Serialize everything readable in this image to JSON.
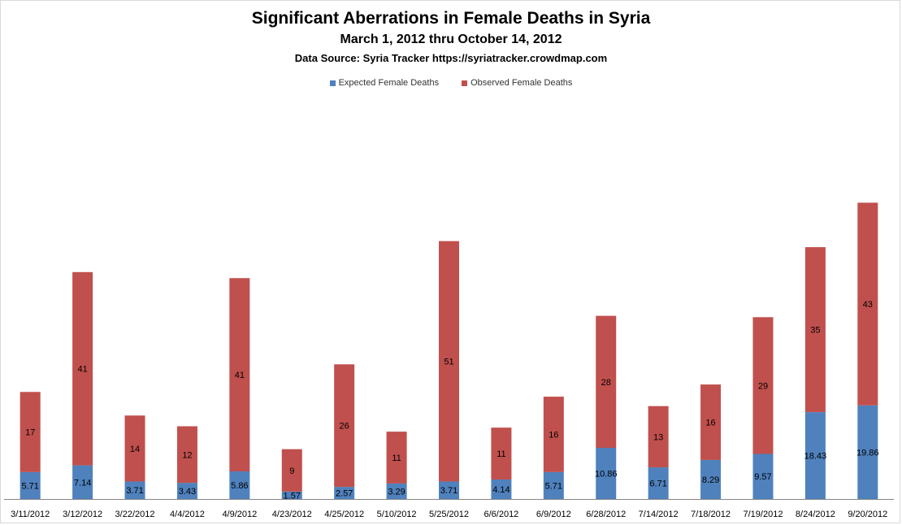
{
  "chart_data": {
    "type": "bar",
    "stacked": true,
    "title": "Significant Aberrations in Female Deaths in Syria",
    "subtitle": "March 1, 2012 thru October 14, 2012",
    "source": "Data Source: Syria Tracker https://syriatracker.crowdmap.com",
    "legend_position": "top",
    "grid": false,
    "categories": [
      "3/11/2012",
      "3/12/2012",
      "3/22/2012",
      "4/4/2012",
      "4/9/2012",
      "4/23/2012",
      "4/25/2012",
      "5/10/2012",
      "5/25/2012",
      "6/6/2012",
      "6/9/2012",
      "6/28/2012",
      "7/14/2012",
      "7/18/2012",
      "7/19/2012",
      "8/24/2012",
      "9/20/2012"
    ],
    "series": [
      {
        "name": "Expected Female Deaths",
        "color": "#4f81bd",
        "values": [
          5.71,
          7.14,
          3.71,
          3.43,
          5.86,
          1.57,
          2.57,
          3.29,
          3.71,
          4.14,
          5.71,
          10.86,
          6.71,
          8.29,
          9.57,
          18.43,
          19.86
        ],
        "labels": [
          "5.71",
          "7.14",
          "3.71",
          "3.43",
          "5.86",
          "1.57",
          "2.57",
          "3.29",
          "3.71",
          "4.14",
          "5.71",
          "10.86",
          "6.71",
          "8.29",
          "9.57",
          "18.43",
          "19.86"
        ]
      },
      {
        "name": "Observed Female Deaths",
        "color": "#c0504d",
        "values": [
          17,
          41,
          14,
          12,
          41,
          9,
          26,
          11,
          51,
          11,
          16,
          28,
          13,
          16,
          29,
          35,
          43
        ],
        "labels": [
          "17",
          "41",
          "14",
          "12",
          "41",
          "9",
          "26",
          "11",
          "51",
          "11",
          "16",
          "28",
          "13",
          "16",
          "29",
          "35",
          "43"
        ]
      }
    ]
  }
}
